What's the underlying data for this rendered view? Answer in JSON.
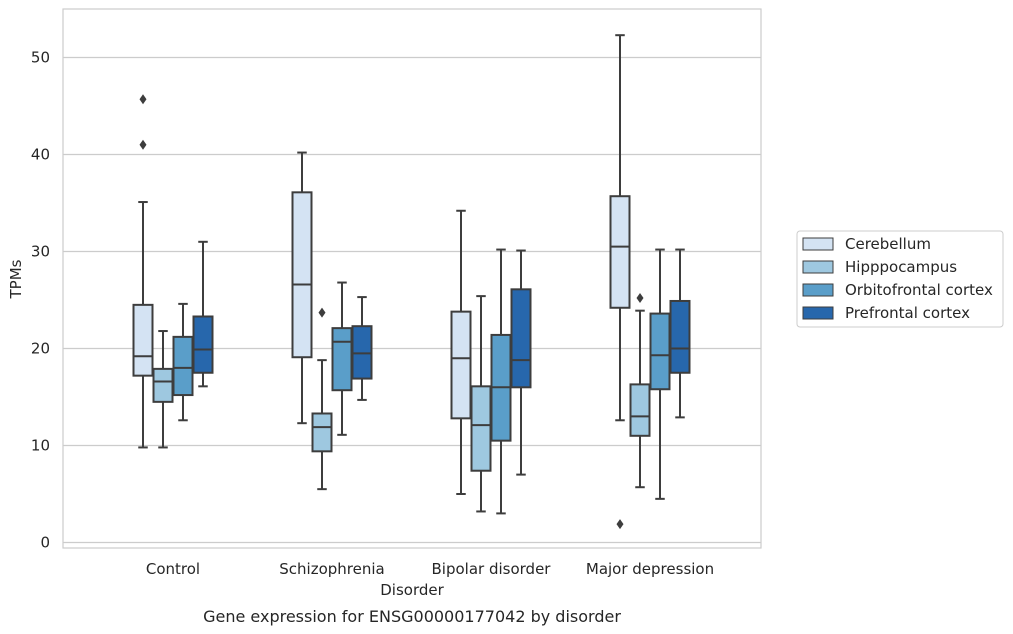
{
  "chart_data": {
    "type": "box",
    "caption": "Gene expression for ENSG00000177042 by disorder",
    "xlabel": "Disorder",
    "ylabel": "TPMs",
    "ylim": [
      -0.5,
      55
    ],
    "yticks": [
      0,
      10,
      20,
      30,
      40,
      50
    ],
    "grid": "horizontal",
    "legend_position": "right",
    "categories": [
      "Control",
      "Schizophrenia",
      "Bipolar disorder",
      "Major depression"
    ],
    "series": [
      {
        "name": "Cerebellum",
        "color": "#d4e3f3",
        "boxes": [
          {
            "whisker_low": 9.8,
            "q1": 17.2,
            "median": 19.2,
            "q3": 24.5,
            "whisker_high": 35.1,
            "outliers": [
              41.0,
              45.7
            ]
          },
          {
            "whisker_low": 12.3,
            "q1": 19.1,
            "median": 26.6,
            "q3": 36.1,
            "whisker_high": 40.2,
            "outliers": []
          },
          {
            "whisker_low": 5.0,
            "q1": 12.8,
            "median": 19.0,
            "q3": 23.8,
            "whisker_high": 34.2,
            "outliers": []
          },
          {
            "whisker_low": 12.6,
            "q1": 24.2,
            "median": 30.5,
            "q3": 35.7,
            "whisker_high": 52.3,
            "outliers": [
              1.9
            ]
          }
        ]
      },
      {
        "name": "Hipppocampus",
        "color": "#9ec8e0",
        "boxes": [
          {
            "whisker_low": 9.8,
            "q1": 14.5,
            "median": 16.6,
            "q3": 17.9,
            "whisker_high": 21.8,
            "outliers": []
          },
          {
            "whisker_low": 5.5,
            "q1": 9.4,
            "median": 11.9,
            "q3": 13.3,
            "whisker_high": 18.8,
            "outliers": [
              23.7
            ]
          },
          {
            "whisker_low": 3.2,
            "q1": 7.4,
            "median": 12.1,
            "q3": 16.1,
            "whisker_high": 25.4,
            "outliers": []
          },
          {
            "whisker_low": 5.7,
            "q1": 11.0,
            "median": 13.0,
            "q3": 16.3,
            "whisker_high": 23.9,
            "outliers": [
              25.2
            ]
          }
        ]
      },
      {
        "name": "Orbitofrontal cortex",
        "color": "#5a9ec9",
        "boxes": [
          {
            "whisker_low": 12.6,
            "q1": 15.2,
            "median": 18.0,
            "q3": 21.2,
            "whisker_high": 24.6,
            "outliers": []
          },
          {
            "whisker_low": 11.1,
            "q1": 15.7,
            "median": 20.7,
            "q3": 22.1,
            "whisker_high": 26.8,
            "outliers": []
          },
          {
            "whisker_low": 3.0,
            "q1": 10.5,
            "median": 16.0,
            "q3": 21.4,
            "whisker_high": 30.2,
            "outliers": []
          },
          {
            "whisker_low": 4.5,
            "q1": 15.8,
            "median": 19.3,
            "q3": 23.6,
            "whisker_high": 30.2,
            "outliers": []
          }
        ]
      },
      {
        "name": "Prefrontal cortex",
        "color": "#2767ac",
        "boxes": [
          {
            "whisker_low": 16.1,
            "q1": 17.5,
            "median": 19.9,
            "q3": 23.3,
            "whisker_high": 31.0,
            "outliers": []
          },
          {
            "whisker_low": 14.7,
            "q1": 16.9,
            "median": 19.5,
            "q3": 22.3,
            "whisker_high": 25.3,
            "outliers": []
          },
          {
            "whisker_low": 7.0,
            "q1": 16.0,
            "median": 18.8,
            "q3": 26.1,
            "whisker_high": 30.1,
            "outliers": []
          },
          {
            "whisker_low": 12.9,
            "q1": 17.5,
            "median": 20.0,
            "q3": 24.9,
            "whisker_high": 30.2,
            "outliers": []
          }
        ]
      }
    ]
  }
}
